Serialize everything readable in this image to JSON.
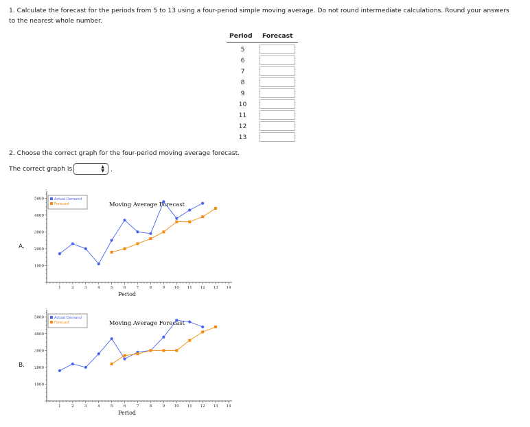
{
  "question1": {
    "text": "1. Calculate the forecast for the periods from 5 to 13 using a four-period simple moving average. Do not round intermediate calculations. Round your answers to the nearest whole number."
  },
  "table": {
    "period_header": "Period",
    "forecast_header": "Forecast",
    "periods": [
      "5",
      "6",
      "7",
      "8",
      "9",
      "10",
      "11",
      "12",
      "13"
    ]
  },
  "question2": {
    "text": "2. Choose the correct graph for the four-period moving average forecast.",
    "answer_prompt": "The correct graph is",
    "answer_suffix": ".",
    "select_value": ""
  },
  "options": {
    "a_label": "A.",
    "b_label": "B."
  },
  "colors": {
    "actual": "#4a64f0",
    "forecast": "#f48a0e"
  },
  "chart_data": [
    {
      "type": "line",
      "title": "Moving Average Forecast",
      "xlabel": "Period",
      "ylabel": "",
      "x_ticks": [
        "1",
        "2",
        "3",
        "4",
        "5",
        "6",
        "7",
        "8",
        "9",
        "10",
        "11",
        "12",
        "13",
        "14"
      ],
      "y_ticks": [
        "1000",
        "2000",
        "3000",
        "4000",
        "5000"
      ],
      "xlim": [
        0,
        14
      ],
      "ylim": [
        0,
        5500
      ],
      "legend": "top-left",
      "series": [
        {
          "name": "Actual Demand",
          "x": [
            1,
            2,
            3,
            4,
            5,
            6,
            7,
            8,
            9,
            10,
            11,
            12
          ],
          "y": [
            1700,
            2300,
            2000,
            1100,
            2500,
            3700,
            3000,
            2900,
            4800,
            3800,
            4300,
            4700
          ]
        },
        {
          "name": "Forecast",
          "x": [
            5,
            6,
            7,
            8,
            9,
            10,
            11,
            12,
            13
          ],
          "y": [
            1800,
            2000,
            2300,
            2600,
            3000,
            3600,
            3600,
            3900,
            4400
          ]
        }
      ]
    },
    {
      "type": "line",
      "title": "Moving Average Forecast",
      "xlabel": "Period",
      "ylabel": "",
      "x_ticks": [
        "1",
        "2",
        "3",
        "4",
        "5",
        "6",
        "7",
        "8",
        "9",
        "10",
        "11",
        "12",
        "13",
        "14"
      ],
      "y_ticks": [
        "1000",
        "2000",
        "3000",
        "4000",
        "5000"
      ],
      "xlim": [
        0,
        14
      ],
      "ylim": [
        0,
        5500
      ],
      "legend": "top-left",
      "series": [
        {
          "name": "Actual Demand",
          "x": [
            1,
            2,
            3,
            4,
            5,
            6,
            7,
            8,
            9,
            10,
            11,
            12
          ],
          "y": [
            1800,
            2200,
            2000,
            2800,
            3700,
            2500,
            2900,
            3000,
            3800,
            4800,
            4700,
            4400
          ]
        },
        {
          "name": "Forecast",
          "x": [
            5,
            6,
            7,
            8,
            9,
            10,
            11,
            12,
            13
          ],
          "y": [
            2200,
            2700,
            2800,
            3000,
            3000,
            3000,
            3600,
            4100,
            4400
          ]
        }
      ]
    }
  ]
}
